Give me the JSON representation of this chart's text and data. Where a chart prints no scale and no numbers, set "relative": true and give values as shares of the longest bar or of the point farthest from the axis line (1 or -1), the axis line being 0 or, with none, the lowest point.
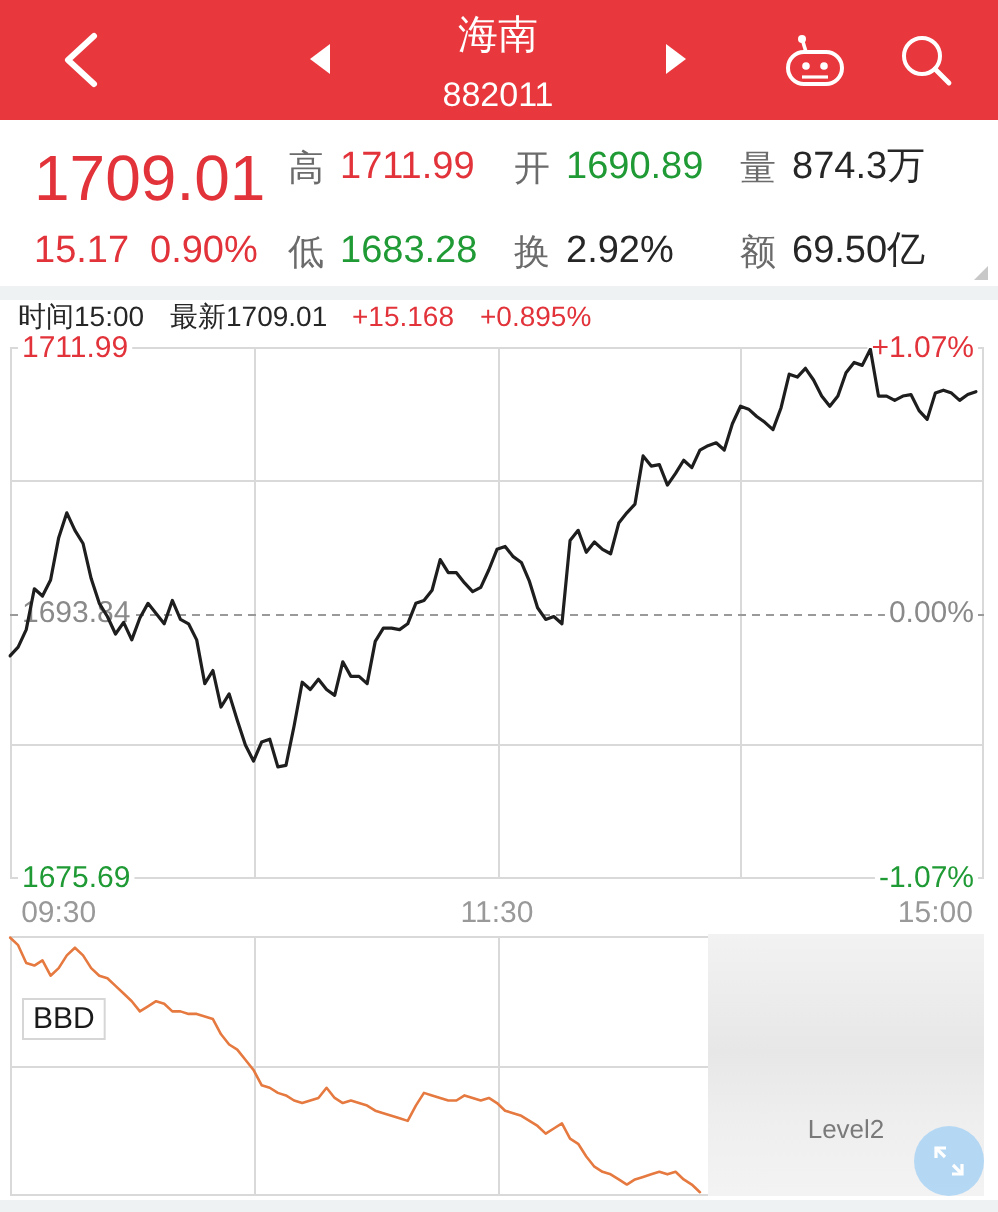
{
  "chart_data": [
    {
      "type": "other",
      "title": "海南",
      "subtitle": "882011",
      "annotations": [
        "1709.01",
        "15.17",
        "0.90%",
        "高",
        "1711.99",
        "开",
        "1690.89",
        "量",
        "874.3万",
        "低",
        "1683.28",
        "换",
        "2.92%",
        "额",
        "69.50亿"
      ]
    },
    {
      "type": "line",
      "annotations": [
        "时间15:00",
        "最新1709.01",
        "+15.168",
        "+0.895%"
      ],
      "categories": [
        null,
        null,
        null,
        null,
        null,
        null,
        "09:30",
        null,
        null,
        null,
        null,
        null,
        null,
        null,
        null,
        null,
        null,
        null,
        null,
        null,
        null,
        null,
        null,
        null,
        null,
        null,
        null,
        null,
        null,
        null,
        null,
        null,
        null,
        null,
        null,
        null,
        null,
        null,
        null,
        null,
        null,
        null,
        null,
        null,
        null,
        null,
        null,
        null,
        null,
        null,
        null,
        null,
        null,
        null,
        null,
        null,
        null,
        null,
        null,
        null,
        "11:30",
        null,
        null,
        null,
        null,
        null,
        null,
        null,
        null,
        null,
        null,
        null,
        null,
        null,
        null,
        null,
        null,
        null,
        null,
        null,
        null,
        null,
        null,
        null,
        null,
        null,
        null,
        null,
        null,
        null,
        null,
        null,
        null,
        null,
        null,
        null,
        null,
        null,
        null,
        null,
        null,
        null,
        null,
        null,
        null,
        null,
        null,
        null,
        null,
        null,
        null,
        null,
        null,
        null,
        "15:00",
        null,
        null,
        null,
        null,
        null,
        null
      ],
      "values": [
        1690.9,
        1691.5,
        1692.7,
        1695.5,
        1695.0,
        1696.1,
        1699.0,
        1700.7,
        1699.5,
        1698.6,
        1696.2,
        1694.5,
        1693.6,
        1692.4,
        1693.2,
        1692.0,
        1693.5,
        1694.5,
        1693.8,
        1693.1,
        1694.7,
        1693.4,
        1693.1,
        1692.0,
        1689.0,
        1689.9,
        1687.4,
        1688.3,
        1686.5,
        1684.8,
        1683.7,
        1685.0,
        1685.2,
        1683.3,
        1683.4,
        1686.1,
        1689.1,
        1688.6,
        1689.3,
        1688.6,
        1688.2,
        1690.5,
        1689.5,
        1689.5,
        1689.0,
        1691.9,
        1692.8,
        1692.8,
        1692.7,
        1693.1,
        1694.5,
        1694.7,
        1695.4,
        1697.5,
        1696.6,
        1696.6,
        1695.9,
        1695.3,
        1695.6,
        1696.8,
        1698.2,
        1698.4,
        1697.7,
        1697.3,
        1696.0,
        1694.2,
        1693.4,
        1693.6,
        1693.1,
        1698.8,
        1699.5,
        1698.0,
        1698.7,
        1698.2,
        1697.9,
        1700.0,
        1700.7,
        1701.3,
        1704.6,
        1703.9,
        1704.0,
        1702.6,
        1703.4,
        1704.3,
        1703.8,
        1705.0,
        1705.3,
        1705.5,
        1705.0,
        1706.8,
        1708.0,
        1707.8,
        1707.3,
        1706.9,
        1706.4,
        1707.9,
        1710.2,
        1710.0,
        1710.6,
        1709.8,
        1708.7,
        1708.0,
        1708.7,
        1710.3,
        1711.0,
        1710.8,
        1711.9,
        1708.7,
        1708.7,
        1708.4,
        1708.7,
        1708.8,
        1707.7,
        1707.1,
        1708.9,
        1709.1,
        1708.9,
        1708.4,
        1708.8,
        1709.0,
        null
      ],
      "color": "#1e1e1e",
      "ylim": [
        1675.69,
        1711.99
      ],
      "yticks": [
        1675.69,
        {
          "value": 1684.765,
          "label": null
        },
        1693.84,
        {
          "value": 1702.915,
          "label": null
        },
        1711.99
      ],
      "y2lim": [
        -1.07,
        1.07
      ],
      "y2ticks": [
        {
          "value": -1.07,
          "label": "-1.07%"
        },
        {
          "value": 0,
          "label": "0.00%"
        },
        {
          "value": 1.07,
          "label": "+1.07%"
        }
      ],
      "ref_lines": [
        {
          "axis": "y",
          "value": 1693.84,
          "color": "#9a9a9a",
          "line_style": "dashed"
        }
      ],
      "grid": true
    },
    {
      "type": "line",
      "title": "BBD",
      "annotations": [
        "Level2"
      ],
      "relative": true,
      "categories": [
        null,
        null,
        null,
        null,
        null,
        null,
        null,
        null,
        null,
        null,
        null,
        null,
        null,
        null,
        null,
        null,
        null,
        null,
        null,
        null,
        null,
        null,
        null,
        null,
        null,
        null,
        null,
        null,
        null,
        null,
        null,
        null,
        null,
        null,
        null,
        null,
        null,
        null,
        null,
        null,
        null,
        null,
        null,
        null,
        null,
        null,
        null,
        null,
        null,
        null,
        null,
        null,
        null,
        null,
        null,
        null,
        null,
        null,
        null,
        null,
        null,
        null,
        null,
        null,
        null,
        null,
        null,
        null,
        null,
        null,
        null,
        null,
        null,
        null,
        null,
        null,
        null,
        null,
        null,
        null,
        null,
        null,
        null,
        null,
        null,
        null,
        null,
        null,
        null,
        null,
        null,
        null,
        null,
        null,
        null,
        null,
        null,
        null,
        null,
        null,
        null,
        null,
        null,
        null,
        null,
        null,
        null,
        null,
        null,
        null,
        null,
        null,
        null,
        null,
        null,
        null,
        null,
        null,
        null,
        null,
        null
      ],
      "values": [
        1,
        0.97,
        0.9,
        0.89,
        0.91,
        0.85,
        0.88,
        0.93,
        0.96,
        0.93,
        0.88,
        0.85,
        0.84,
        0.81,
        0.78,
        0.75,
        0.71,
        0.73,
        0.75,
        0.74,
        0.71,
        0.71,
        0.7,
        0.7,
        0.69,
        0.68,
        0.62,
        0.58,
        0.56,
        0.52,
        0.48,
        0.42,
        0.41,
        0.39,
        0.38,
        0.36,
        0.35,
        0.36,
        0.37,
        0.41,
        0.37,
        0.35,
        0.36,
        0.35,
        0.34,
        0.32,
        0.31,
        0.3,
        0.29,
        0.28,
        0.34,
        0.39,
        0.38,
        0.37,
        0.36,
        0.36,
        0.38,
        0.37,
        0.36,
        0.37,
        0.35,
        0.32,
        0.31,
        0.3,
        0.28,
        0.26,
        0.23,
        0.25,
        0.27,
        0.21,
        0.19,
        0.14,
        0.1,
        0.08,
        0.07,
        0.05,
        0.03,
        0.05,
        0.06,
        0.07,
        0.08,
        0.07,
        0.08,
        0.05,
        0.03,
        0,
        null,
        null,
        null,
        null,
        null,
        null,
        null,
        null,
        null,
        null,
        null,
        null,
        null,
        null,
        null,
        null,
        null,
        null,
        null,
        null,
        null,
        null,
        null,
        null,
        null,
        null,
        null,
        null,
        null,
        null,
        null,
        null,
        null,
        null,
        null
      ],
      "color": "#e5793f",
      "grid": true
    }
  ]
}
